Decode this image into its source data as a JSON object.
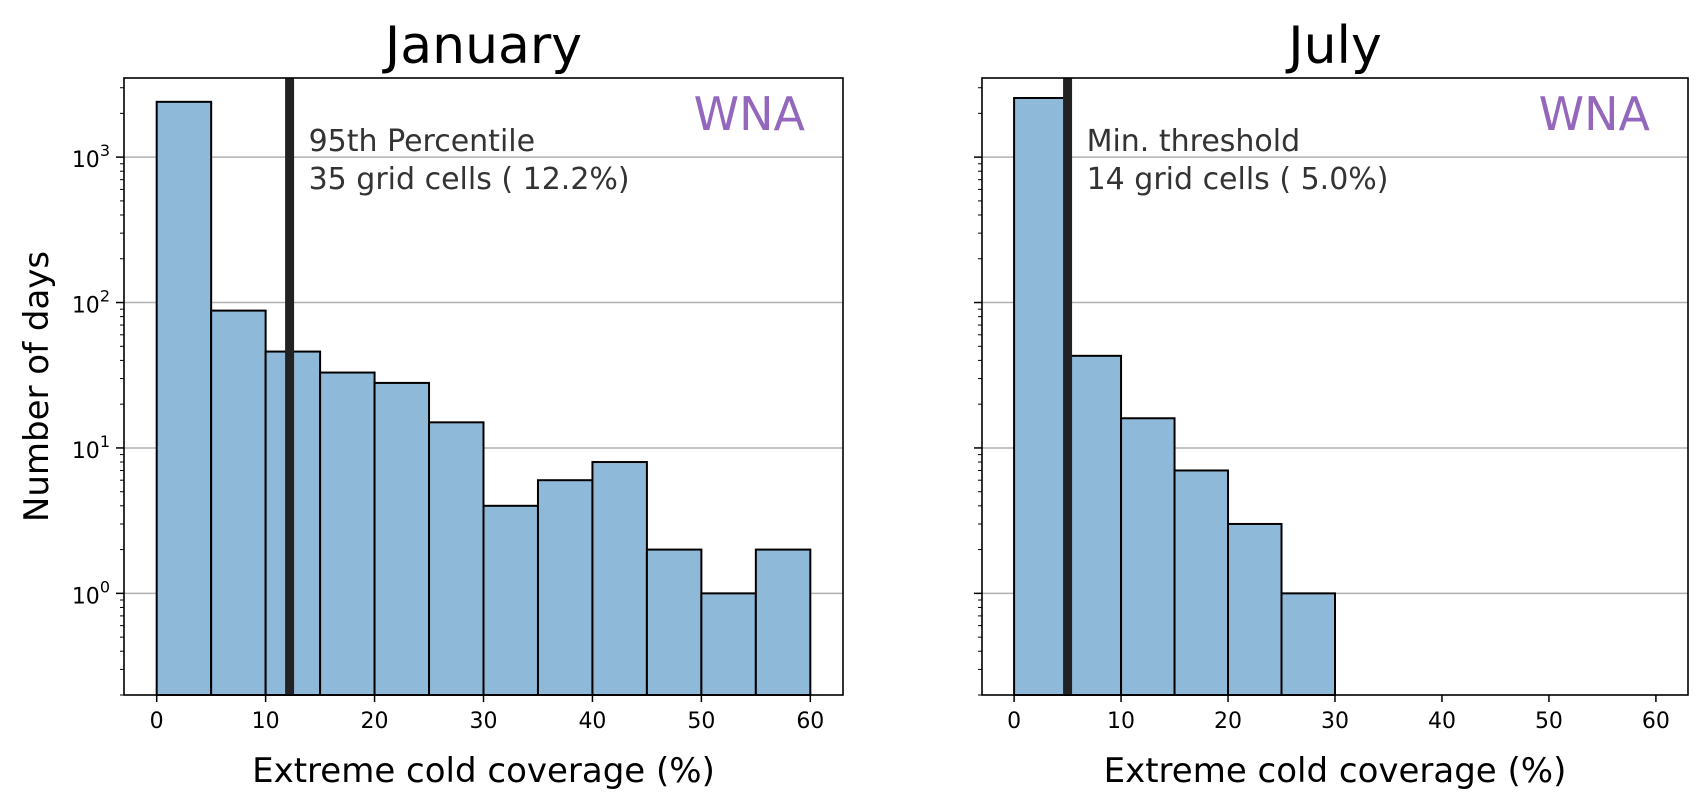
{
  "chart_data": [
    {
      "type": "bar",
      "title": "January",
      "xlabel": "Extreme cold coverage (%)",
      "ylabel": "Number of days",
      "yscale": "log",
      "xlim": [
        -3,
        63
      ],
      "ylim": [
        0.2,
        3500
      ],
      "xticks": [
        0,
        10,
        20,
        30,
        40,
        50,
        60
      ],
      "grid": "y-major",
      "bin_width": 5,
      "bin_starts": [
        0,
        5,
        10,
        15,
        20,
        25,
        30,
        35,
        40,
        45,
        50,
        55
      ],
      "values": [
        2400,
        88,
        46,
        33,
        28,
        15,
        4,
        6,
        8,
        2,
        1,
        2
      ],
      "threshold_x": 12.2,
      "annotation": [
        "95th Percentile",
        "35 grid cells ( 12.2%)"
      ],
      "region_label": "WNA",
      "region_color": "#9467bd",
      "bar_color": "#8fb9d9"
    },
    {
      "type": "bar",
      "title": "July",
      "xlabel": "Extreme cold coverage (%)",
      "ylabel": "",
      "yscale": "log",
      "xlim": [
        -3,
        63
      ],
      "ylim": [
        0.2,
        3500
      ],
      "xticks": [
        0,
        10,
        20,
        30,
        40,
        50,
        60
      ],
      "grid": "y-major",
      "bin_width": 5,
      "bin_starts": [
        0,
        5,
        10,
        15,
        20,
        25
      ],
      "values": [
        2550,
        43,
        16,
        7,
        3,
        1
      ],
      "threshold_x": 5.0,
      "annotation": [
        "Min. threshold",
        "14 grid cells ( 5.0%)"
      ],
      "region_label": "WNA",
      "region_color": "#9467bd",
      "bar_color": "#8fb9d9"
    }
  ]
}
